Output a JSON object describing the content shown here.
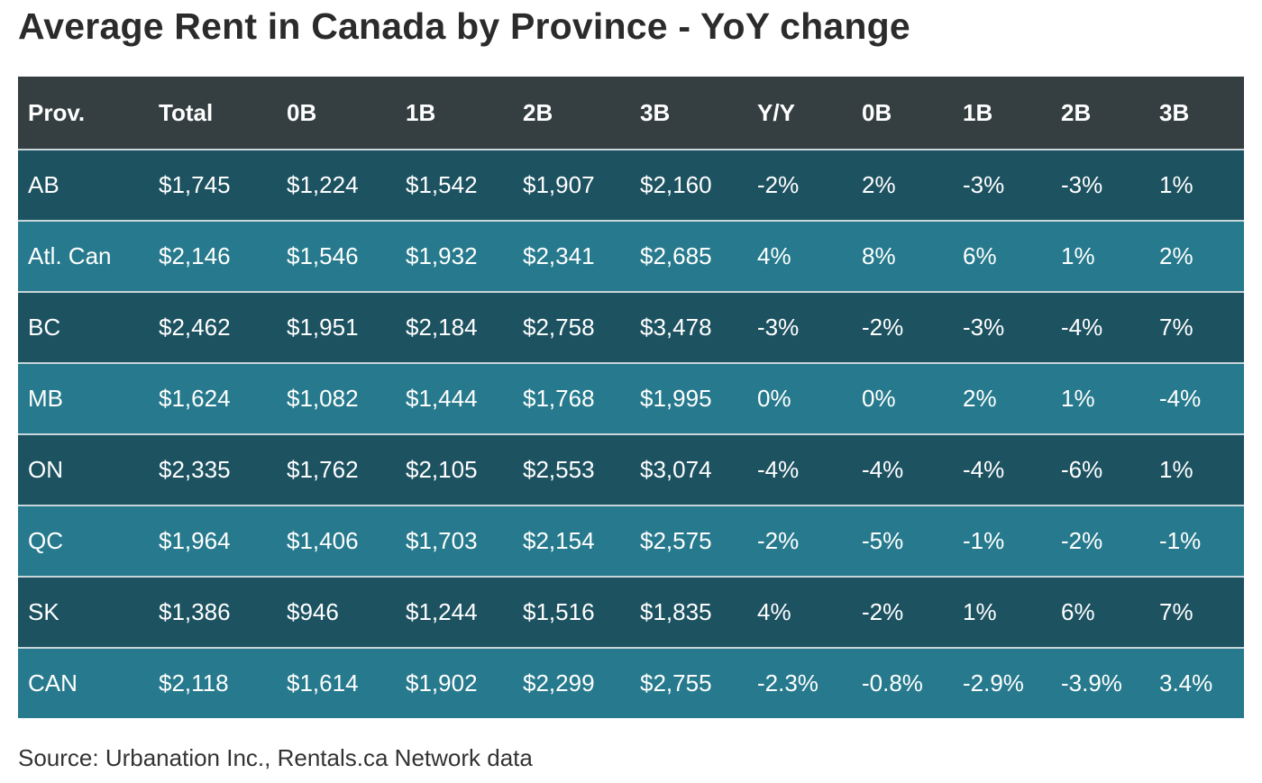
{
  "title": "Average Rent in Canada by Province - YoY change",
  "source": "Source: Urbanation Inc., Rentals.ca Network data",
  "colors": {
    "header": "#353f42",
    "row_dark": "#1d5261",
    "row_light": "#277a8d"
  },
  "chart_data": {
    "type": "table",
    "title": "Average Rent in Canada by Province - YoY change",
    "columns": [
      "Prov.",
      "Total",
      "0B",
      "1B",
      "2B",
      "3B",
      "Y/Y",
      "0B",
      "1B",
      "2B",
      "3B"
    ],
    "rows": [
      [
        "AB",
        "$1,745",
        "$1,224",
        "$1,542",
        "$1,907",
        "$2,160",
        "-2%",
        "2%",
        "-3%",
        "-3%",
        "1%"
      ],
      [
        "Atl. Can",
        "$2,146",
        "$1,546",
        "$1,932",
        "$2,341",
        "$2,685",
        "4%",
        "8%",
        "6%",
        "1%",
        "2%"
      ],
      [
        "BC",
        "$2,462",
        "$1,951",
        "$2,184",
        "$2,758",
        "$3,478",
        "-3%",
        "-2%",
        "-3%",
        "-4%",
        "7%"
      ],
      [
        "MB",
        "$1,624",
        "$1,082",
        "$1,444",
        "$1,768",
        "$1,995",
        "0%",
        "0%",
        "2%",
        "1%",
        "-4%"
      ],
      [
        "ON",
        "$2,335",
        "$1,762",
        "$2,105",
        "$2,553",
        "$3,074",
        "-4%",
        "-4%",
        "-4%",
        "-6%",
        "1%"
      ],
      [
        "QC",
        "$1,964",
        "$1,406",
        "$1,703",
        "$2,154",
        "$2,575",
        "-2%",
        "-5%",
        "-1%",
        "-2%",
        "-1%"
      ],
      [
        "SK",
        "$1,386",
        "$946",
        "$1,244",
        "$1,516",
        "$1,835",
        "4%",
        "-2%",
        "1%",
        "6%",
        "7%"
      ],
      [
        "CAN",
        "$2,118",
        "$1,614",
        "$1,902",
        "$2,299",
        "$2,755",
        "-2.3%",
        "-0.8%",
        "-2.9%",
        "-3.9%",
        "3.4%"
      ]
    ]
  }
}
